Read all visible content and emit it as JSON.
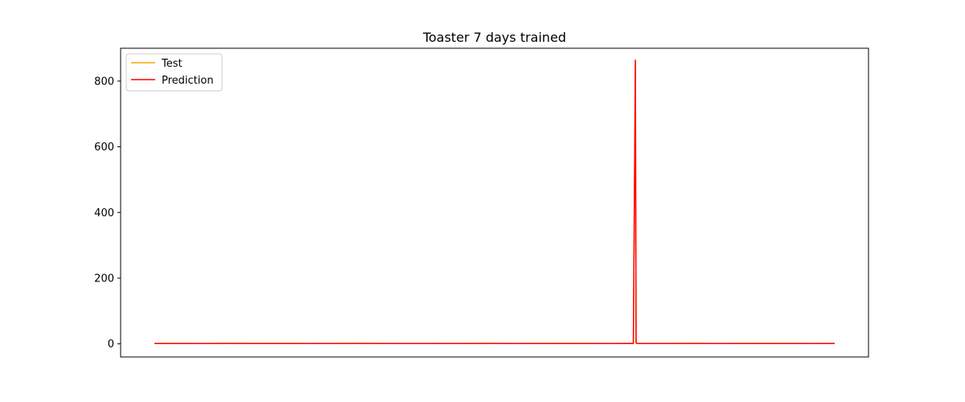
{
  "chart_data": {
    "type": "line",
    "title": "Toaster 7 days trained",
    "xlabel": "",
    "ylabel": "",
    "x_ticks_visible": false,
    "grid": false,
    "legend_placement": "top-left",
    "xlim": [
      0,
      1000
    ],
    "ylim": [
      -40,
      900
    ],
    "y_ticks": [
      0,
      200,
      400,
      600,
      800
    ],
    "series": [
      {
        "name": "Test",
        "color": "#ffa500",
        "points": [
          [
            0,
            1.2
          ],
          [
            100,
            1.0
          ],
          [
            200,
            1.2
          ],
          [
            300,
            1.0
          ],
          [
            400,
            1.1
          ],
          [
            500,
            1.0
          ],
          [
            600,
            1.2
          ],
          [
            700,
            1.0
          ],
          [
            704,
            1.1
          ],
          [
            707,
            860
          ],
          [
            708,
            2
          ],
          [
            710,
            1.1
          ],
          [
            800,
            1.0
          ],
          [
            900,
            1.2
          ],
          [
            1000,
            1.0
          ]
        ]
      },
      {
        "name": "Prediction",
        "color": "#ff0000",
        "points": [
          [
            0,
            1.0
          ],
          [
            100,
            1.2
          ],
          [
            200,
            1.0
          ],
          [
            300,
            1.2
          ],
          [
            400,
            1.0
          ],
          [
            500,
            1.2
          ],
          [
            600,
            1.0
          ],
          [
            700,
            1.2
          ],
          [
            704,
            1.0
          ],
          [
            707,
            864
          ],
          [
            708,
            3
          ],
          [
            710,
            1.0
          ],
          [
            800,
            1.2
          ],
          [
            900,
            1.0
          ],
          [
            1000,
            1.2
          ]
        ]
      }
    ]
  }
}
